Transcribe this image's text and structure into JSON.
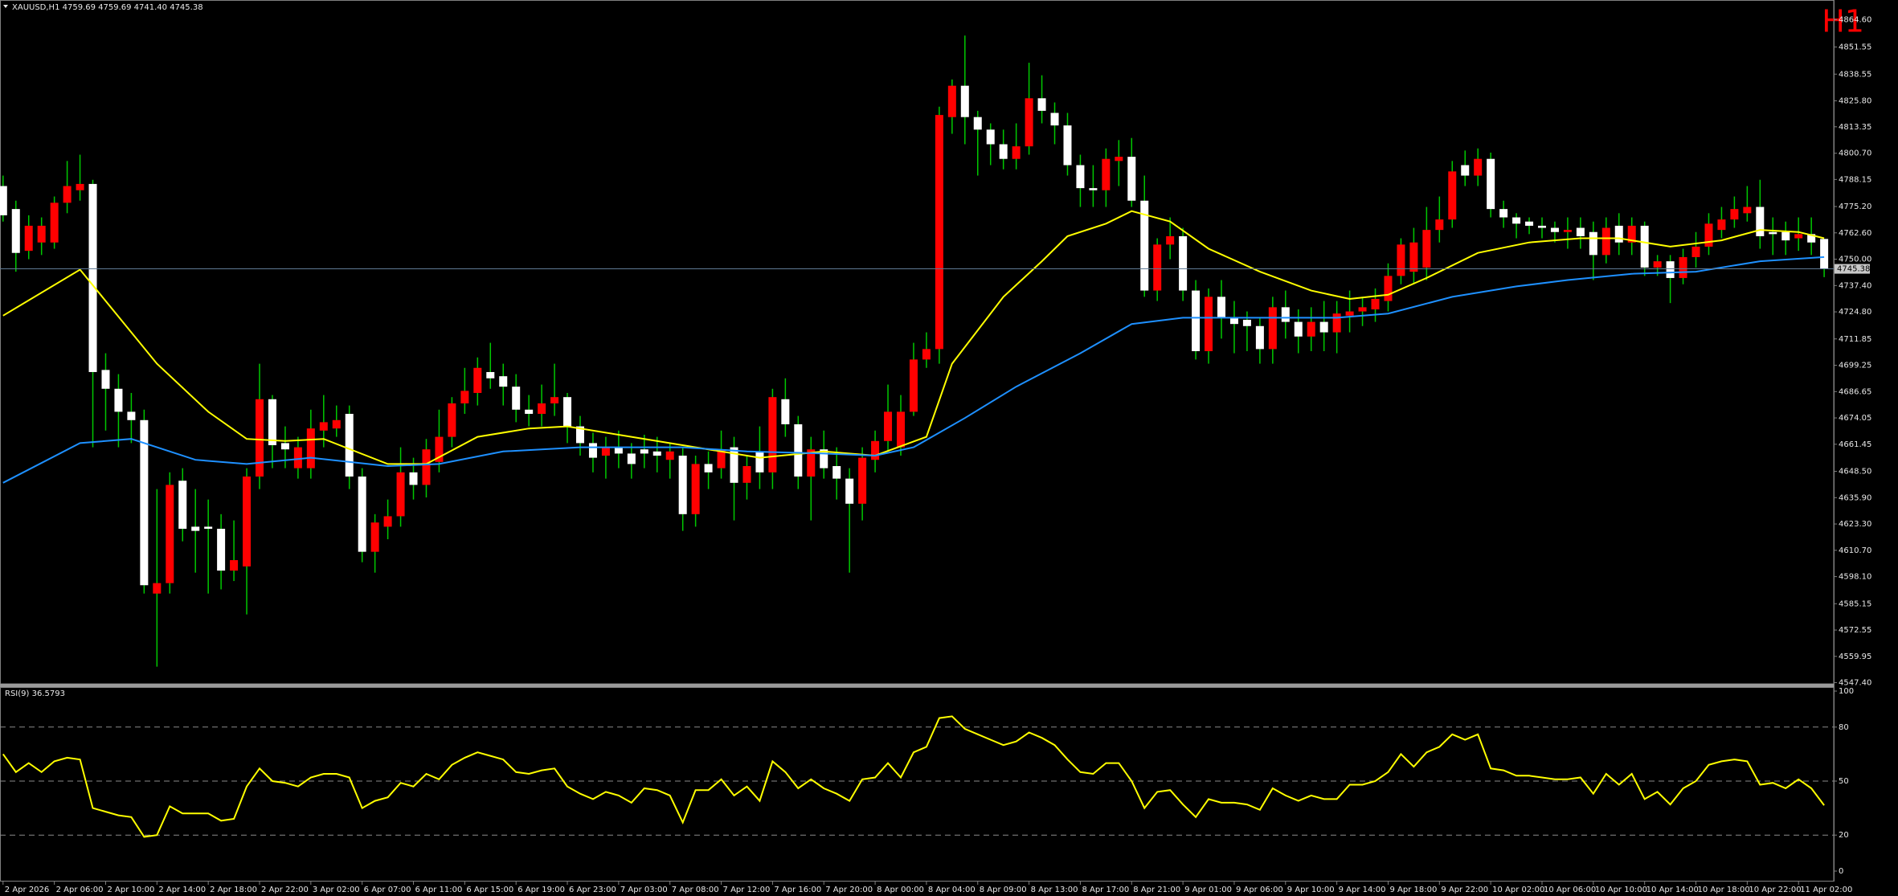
{
  "chart_data": [
    {
      "type": "candlestick",
      "title": "XAUUSD,H1  4759.69 4759.69 4741.40 4745.38",
      "annotation": "H1",
      "categories": [
        "2 Apr 2026",
        null,
        null,
        null,
        "2 Apr 06:00",
        null,
        null,
        null,
        "2 Apr 10:00",
        null,
        null,
        null,
        "2 Apr 14:00",
        null,
        null,
        null,
        "2 Apr 18:00",
        null,
        null,
        null,
        "2 Apr 22:00",
        null,
        null,
        null,
        "3 Apr 02:00",
        null,
        null,
        null,
        "6 Apr 07:00",
        null,
        null,
        null,
        "6 Apr 11:00",
        null,
        null,
        null,
        "6 Apr 15:00",
        null,
        null,
        null,
        "6 Apr 19:00",
        null,
        null,
        null,
        "6 Apr 23:00",
        null,
        null,
        null,
        "7 Apr 03:00",
        null,
        null,
        null,
        "7 Apr 08:00",
        null,
        null,
        null,
        "7 Apr 12:00",
        null,
        null,
        null,
        "7 Apr 16:00",
        null,
        null,
        null,
        "7 Apr 20:00",
        null,
        null,
        null,
        "8 Apr 00:00",
        null,
        null,
        null,
        "8 Apr 04:00",
        null,
        null,
        null,
        "8 Apr 09:00",
        null,
        null,
        null,
        "8 Apr 13:00",
        null,
        null,
        null,
        "8 Apr 17:00",
        null,
        null,
        null,
        "8 Apr 21:00",
        null,
        null,
        null,
        "9 Apr 01:00",
        null,
        null,
        null,
        "9 Apr 06:00",
        null,
        null,
        null,
        "9 Apr 10:00",
        null,
        null,
        null,
        "9 Apr 14:00",
        null,
        null,
        null,
        "9 Apr 18:00",
        null,
        null,
        null,
        "9 Apr 22:00",
        null,
        null,
        null,
        "10 Apr 02:00",
        null,
        null,
        null,
        "10 Apr 06:00",
        null,
        null,
        null,
        "10 Apr 10:00",
        null,
        null,
        null,
        "10 Apr 14:00",
        null,
        null,
        null,
        "10 Apr 18:00",
        null,
        null,
        null,
        "10 Apr 22:00",
        null,
        null,
        null,
        "11 Apr 02:00",
        null,
        null
      ],
      "open": [
        4785,
        4774,
        4754,
        4758,
        4758,
        4777,
        4783,
        4786,
        4697,
        4688,
        4677,
        4673,
        4590,
        4595,
        4644,
        4622,
        4622,
        4621,
        4601,
        4603,
        4646,
        4683,
        4662,
        4650,
        4650,
        4668,
        4669,
        4676,
        4646,
        4610,
        4622,
        4627,
        4648,
        4642,
        4653,
        4665,
        4681,
        4686,
        4696,
        4694,
        4689,
        4678,
        4676,
        4681,
        4684,
        4670,
        4662,
        4656,
        4660,
        4657,
        4659,
        4658,
        4654,
        4656,
        4628,
        4652,
        4650,
        4660,
        4643,
        4658,
        4648,
        4683,
        4671,
        4646,
        4659,
        4651,
        4645,
        4633,
        4654,
        4663,
        4660,
        4677,
        4702,
        4707,
        4818,
        4833,
        4818,
        4812,
        4805,
        4798,
        4804,
        4827,
        4820,
        4814,
        4795,
        4784,
        4783,
        4797,
        4799,
        4778,
        4735,
        4757,
        4761,
        4735,
        4706,
        4732,
        4722,
        4721,
        4718,
        4707,
        4727,
        4720,
        4713,
        4720,
        4715,
        4723,
        4725,
        4726,
        4730,
        4742,
        4744,
        4746,
        4764,
        4769,
        4795,
        4790,
        4798,
        4774,
        4770,
        4768,
        4766,
        4765,
        4763,
        4765,
        4763,
        4752,
        4766,
        4758,
        4766,
        4746,
        4749,
        4741,
        4751,
        4756,
        4764,
        4769,
        4772,
        4775,
        4763,
        4763,
        4760,
        4762,
        4759.69
      ],
      "high": [
        4790,
        4778,
        4771,
        4770,
        4780,
        4797,
        4800,
        4788,
        4705,
        4695,
        4686,
        4678,
        4640,
        4648,
        4650,
        4640,
        4635,
        4628,
        4625,
        4650,
        4700,
        4685,
        4670,
        4665,
        4678,
        4685,
        4680,
        4680,
        4650,
        4628,
        4635,
        4660,
        4655,
        4664,
        4678,
        4684,
        4698,
        4703,
        4710,
        4700,
        4695,
        4685,
        4690,
        4700,
        4686,
        4675,
        4667,
        4665,
        4668,
        4662,
        4666,
        4665,
        4662,
        4660,
        4656,
        4658,
        4668,
        4665,
        4656,
        4670,
        4688,
        4693,
        4675,
        4665,
        4668,
        4660,
        4650,
        4660,
        4668,
        4690,
        4685,
        4710,
        4715,
        4823,
        4836,
        4857,
        4821,
        4815,
        4812,
        4815,
        4844,
        4838,
        4825,
        4820,
        4800,
        4795,
        4803,
        4807,
        4808,
        4790,
        4760,
        4770,
        4765,
        4740,
        4736,
        4740,
        4730,
        4725,
        4722,
        4732,
        4735,
        4726,
        4727,
        4730,
        4730,
        4735,
        4732,
        4736,
        4748,
        4760,
        4765,
        4775,
        4780,
        4797,
        4802,
        4803,
        4801,
        4778,
        4772,
        4770,
        4770,
        4768,
        4770,
        4770,
        4768,
        4770,
        4772,
        4770,
        4768,
        4752,
        4752,
        4755,
        4763,
        4772,
        4775,
        4780,
        4785,
        4788,
        4770,
        4768,
        4770,
        4770,
        4759.69
      ],
      "low": [
        4768,
        4744,
        4750,
        4752,
        4755,
        4772,
        4778,
        4660,
        4668,
        4660,
        4662,
        4590,
        4555,
        4590,
        4615,
        4600,
        4590,
        4592,
        4596,
        4580,
        4640,
        4650,
        4650,
        4645,
        4645,
        4660,
        4665,
        4640,
        4605,
        4600,
        4616,
        4622,
        4635,
        4636,
        4648,
        4660,
        4676,
        4680,
        4688,
        4680,
        4672,
        4670,
        4670,
        4675,
        4662,
        4656,
        4648,
        4645,
        4650,
        4645,
        4650,
        4648,
        4645,
        4620,
        4622,
        4640,
        4645,
        4625,
        4635,
        4640,
        4640,
        4665,
        4640,
        4625,
        4645,
        4635,
        4600,
        4625,
        4648,
        4658,
        4656,
        4675,
        4698,
        4700,
        4810,
        4805,
        4790,
        4795,
        4793,
        4793,
        4800,
        4815,
        4805,
        4790,
        4775,
        4775,
        4775,
        4785,
        4775,
        4732,
        4730,
        4750,
        4730,
        4702,
        4700,
        4712,
        4705,
        4706,
        4700,
        4700,
        4712,
        4705,
        4706,
        4706,
        4705,
        4715,
        4718,
        4720,
        4725,
        4738,
        4738,
        4740,
        4758,
        4765,
        4785,
        4785,
        4770,
        4765,
        4760,
        4762,
        4760,
        4758,
        4755,
        4755,
        4740,
        4748,
        4752,
        4752,
        4742,
        4742,
        4729,
        4738,
        4746,
        4752,
        4760,
        4765,
        4768,
        4755,
        4752,
        4752,
        4754,
        4752,
        4741.4
      ],
      "close": [
        4771,
        4753,
        4766,
        4766,
        4777,
        4785,
        4786,
        4696,
        4688,
        4677,
        4673,
        4594,
        4595,
        4642,
        4621,
        4620,
        4621,
        4601,
        4606,
        4646,
        4683,
        4661,
        4659,
        4660,
        4669,
        4672,
        4673,
        4646,
        4610,
        4624,
        4627,
        4648,
        4642,
        4659,
        4665,
        4681,
        4687,
        4698,
        4693,
        4689,
        4678,
        4676,
        4681,
        4684,
        4670,
        4662,
        4655,
        4660,
        4657,
        4652,
        4657,
        4656,
        4658,
        4628,
        4652,
        4648,
        4659,
        4643,
        4651,
        4648,
        4684,
        4671,
        4646,
        4659,
        4650,
        4645,
        4633,
        4655,
        4663,
        4677,
        4677,
        4702,
        4707,
        4819,
        4833,
        4818,
        4812,
        4805,
        4798,
        4804,
        4827,
        4821,
        4814,
        4795,
        4784,
        4783,
        4798,
        4799,
        4778,
        4735,
        4757,
        4761,
        4735,
        4706,
        4732,
        4722,
        4719,
        4718,
        4707,
        4727,
        4720,
        4713,
        4720,
        4715,
        4724,
        4725,
        4727,
        4731,
        4742,
        4757,
        4758,
        4764,
        4769,
        4792,
        4790,
        4798,
        4774,
        4770,
        4767,
        4766,
        4765,
        4763,
        4764,
        4761,
        4752,
        4765,
        4758,
        4766,
        4746,
        4749,
        4741,
        4751,
        4756,
        4767,
        4769,
        4774,
        4775,
        4761,
        4762,
        4759,
        4762,
        4758,
        4745.38
      ],
      "up_color": "#ff0000",
      "down_color": "#ffffff",
      "wick_color": "#00c800",
      "overlays": [
        {
          "color": "#ffff00",
          "x": [
            0,
            6,
            12,
            16,
            19,
            22,
            25,
            30,
            33,
            37,
            41,
            44,
            49,
            54,
            59,
            64,
            68,
            72,
            74,
            78,
            81,
            83,
            86,
            88,
            91,
            94,
            98,
            102,
            105,
            108,
            111,
            115,
            119,
            123,
            126,
            130,
            134,
            137,
            140,
            142
          ],
          "values": [
            4723,
            4745,
            4700,
            4677,
            4664,
            4663,
            4664,
            4652,
            4652,
            4665,
            4669,
            4670,
            4665,
            4660,
            4655,
            4658,
            4656,
            4665,
            4700,
            4732,
            4749,
            4761,
            4767,
            4773,
            4768,
            4755,
            4744,
            4735,
            4731,
            4733,
            4741,
            4753,
            4758,
            4760,
            4760,
            4756,
            4759,
            4764,
            4763,
            4760
          ]
        },
        {
          "color": "#1e90ff",
          "x": [
            0,
            6,
            10,
            15,
            19,
            24,
            30,
            34,
            39,
            45,
            53,
            58,
            64,
            68,
            71,
            75,
            79,
            84,
            88,
            92,
            99,
            104,
            108,
            113,
            118,
            122,
            127,
            132,
            137,
            142
          ],
          "values": [
            4643,
            4662,
            4664,
            4654,
            4652,
            4655,
            4651,
            4652,
            4658,
            4660,
            4660,
            4658,
            4657,
            4656,
            4660,
            4674,
            4689,
            4705,
            4719,
            4722,
            4722,
            4722,
            4724,
            4732,
            4737,
            4740,
            4743,
            4744,
            4749,
            4751
          ]
        }
      ],
      "price_line": {
        "value": 4745.38,
        "color": "#5f7a94"
      },
      "ylim": [
        4546.8,
        4872.1
      ],
      "yticks": [
        {
          "value": 4864.6,
          "label": "4864.60"
        },
        4851.55,
        4838.55,
        {
          "value": 4825.8,
          "label": "4825.80"
        },
        4813.35,
        {
          "value": 4800.7,
          "label": "4800.70"
        },
        4788.15,
        {
          "value": 4775.2,
          "label": "4775.20"
        },
        {
          "value": 4762.6,
          "label": "4762.60"
        },
        {
          "value": 4750,
          "label": "4750.00"
        },
        {
          "value": 4737.4,
          "label": "4737.40"
        },
        {
          "value": 4724.8,
          "label": "4724.80"
        },
        4711.85,
        4699.25,
        4686.65,
        4674.05,
        4661.45,
        {
          "value": 4648.5,
          "label": "4648.50"
        },
        {
          "value": 4635.9,
          "label": "4635.90"
        },
        {
          "value": 4623.3,
          "label": "4623.30"
        },
        {
          "value": 4610.7,
          "label": "4610.70"
        },
        {
          "value": 4598.1,
          "label": "4598.10"
        },
        4585.15,
        4572.55,
        4559.95,
        {
          "value": 4547.4,
          "label": "4547.40"
        }
      ]
    },
    {
      "type": "line",
      "title": "RSI(9) 36.5793",
      "color": "#ffff00",
      "values": [
        65,
        55,
        60,
        55,
        61,
        63,
        62,
        35,
        33,
        31,
        30,
        19,
        20,
        36,
        32,
        32,
        32,
        28,
        29,
        47,
        57,
        50,
        49,
        47,
        52,
        54,
        54,
        52,
        35,
        39,
        41,
        49,
        47,
        54,
        51,
        59,
        63,
        66,
        64,
        62,
        55,
        54,
        56,
        57,
        47,
        43,
        40,
        44,
        42,
        38,
        46,
        45,
        42,
        27,
        45,
        45,
        51,
        42,
        47,
        39,
        61,
        55,
        46,
        51,
        46,
        43,
        39,
        51,
        52,
        60,
        52,
        66,
        69,
        85,
        86,
        79,
        76,
        73,
        70,
        72,
        77,
        74,
        70,
        62,
        55,
        54,
        60,
        60,
        50,
        35,
        44,
        45,
        37,
        30,
        40,
        38,
        38,
        37,
        34,
        46,
        42,
        39,
        42,
        40,
        40,
        48,
        48,
        50,
        55,
        65,
        58,
        66,
        69,
        76,
        73,
        76,
        57,
        56,
        53,
        53,
        52,
        51,
        51,
        52,
        43,
        54,
        48,
        54,
        40,
        44,
        37,
        46,
        50,
        59,
        61,
        62,
        61,
        48,
        49,
        46,
        51,
        46,
        36.5793
      ],
      "ylim": [
        0,
        100
      ],
      "yticks": [
        0,
        20,
        50,
        80,
        100
      ]
    }
  ]
}
